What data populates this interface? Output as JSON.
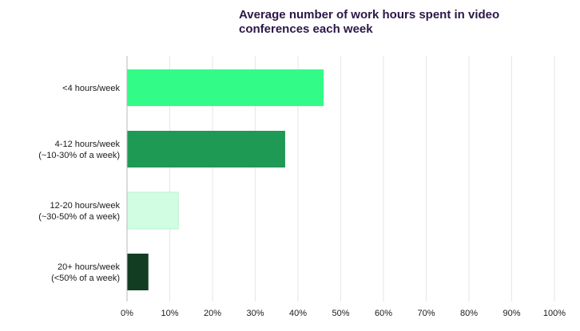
{
  "chart_data": {
    "type": "bar",
    "orientation": "horizontal",
    "title": "Average number of work hours spent in video conferences each week",
    "categories": [
      [
        "<4 hours/week"
      ],
      [
        "4-12 hours/week",
        "(~10-30% of a week)"
      ],
      [
        "12-20 hours/week",
        "(~30-50% of a week)"
      ],
      [
        "20+ hours/week",
        "(<50% of a week)"
      ]
    ],
    "values": [
      46,
      37,
      12,
      5
    ],
    "bar_colors": [
      "#33fb87",
      "#1f9a55",
      "#d1fde2",
      "#123d22"
    ],
    "xlim": [
      0,
      100
    ],
    "xticks": [
      "0%",
      "10%",
      "20%",
      "30%",
      "40%",
      "50%",
      "60%",
      "70%",
      "80%",
      "90%",
      "100%"
    ],
    "xlabel": "",
    "ylabel": "",
    "grid": "vertical",
    "legend": "none"
  }
}
